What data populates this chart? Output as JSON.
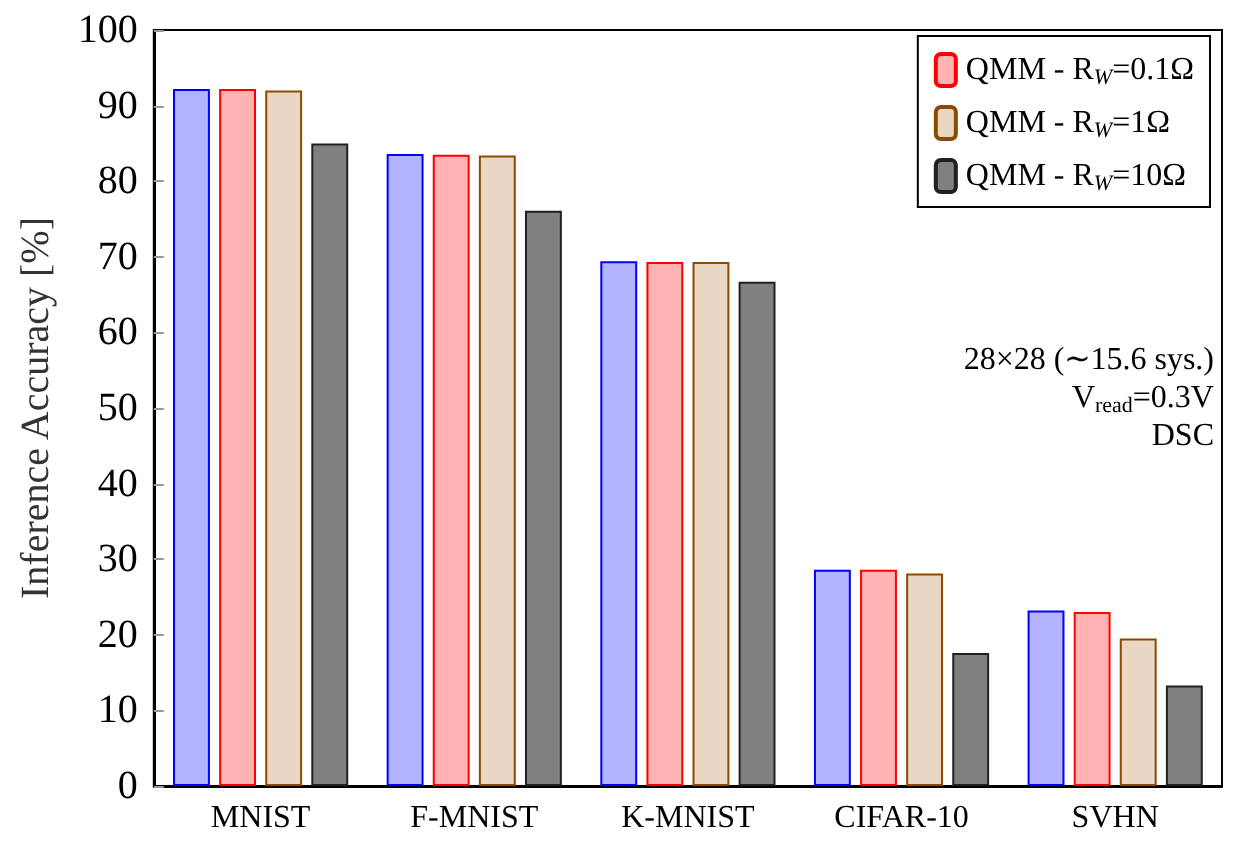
{
  "chart_data": {
    "type": "bar",
    "ylabel": "Inference Accuracy [%]",
    "categories": [
      "MNIST",
      "F-MNIST",
      "K-MNIST",
      "CIFAR-10",
      "SVHN"
    ],
    "series": [
      {
        "color": "#b3b3ff",
        "values": [
          92.2,
          83.6,
          69.4,
          28.6,
          23.2
        ]
      },
      {
        "name": "QMM - R$_{W}$=0.1Ω",
        "color": "#ffb3b3",
        "values": [
          92.2,
          83.5,
          69.3,
          28.6,
          23.0
        ]
      },
      {
        "name": "QMM - R$_{W}$=1Ω",
        "color": "#e9d7c3",
        "values": [
          92.0,
          83.4,
          69.3,
          28.1,
          19.5
        ]
      },
      {
        "name": "QMM - R$_{W}$=10Ω",
        "color": "#808080",
        "values": [
          85.0,
          76.1,
          66.7,
          17.6,
          13.3
        ]
      }
    ],
    "ylim": [
      0,
      100
    ],
    "yticks": [
      0,
      10,
      20,
      30,
      40,
      50,
      60,
      70,
      80,
      90,
      100
    ],
    "annotations": [
      "28×28 (∼15.6 sys.)",
      "V$_{read}$=0.3V",
      "DSC"
    ],
    "legend": "top right",
    "grid": false
  }
}
